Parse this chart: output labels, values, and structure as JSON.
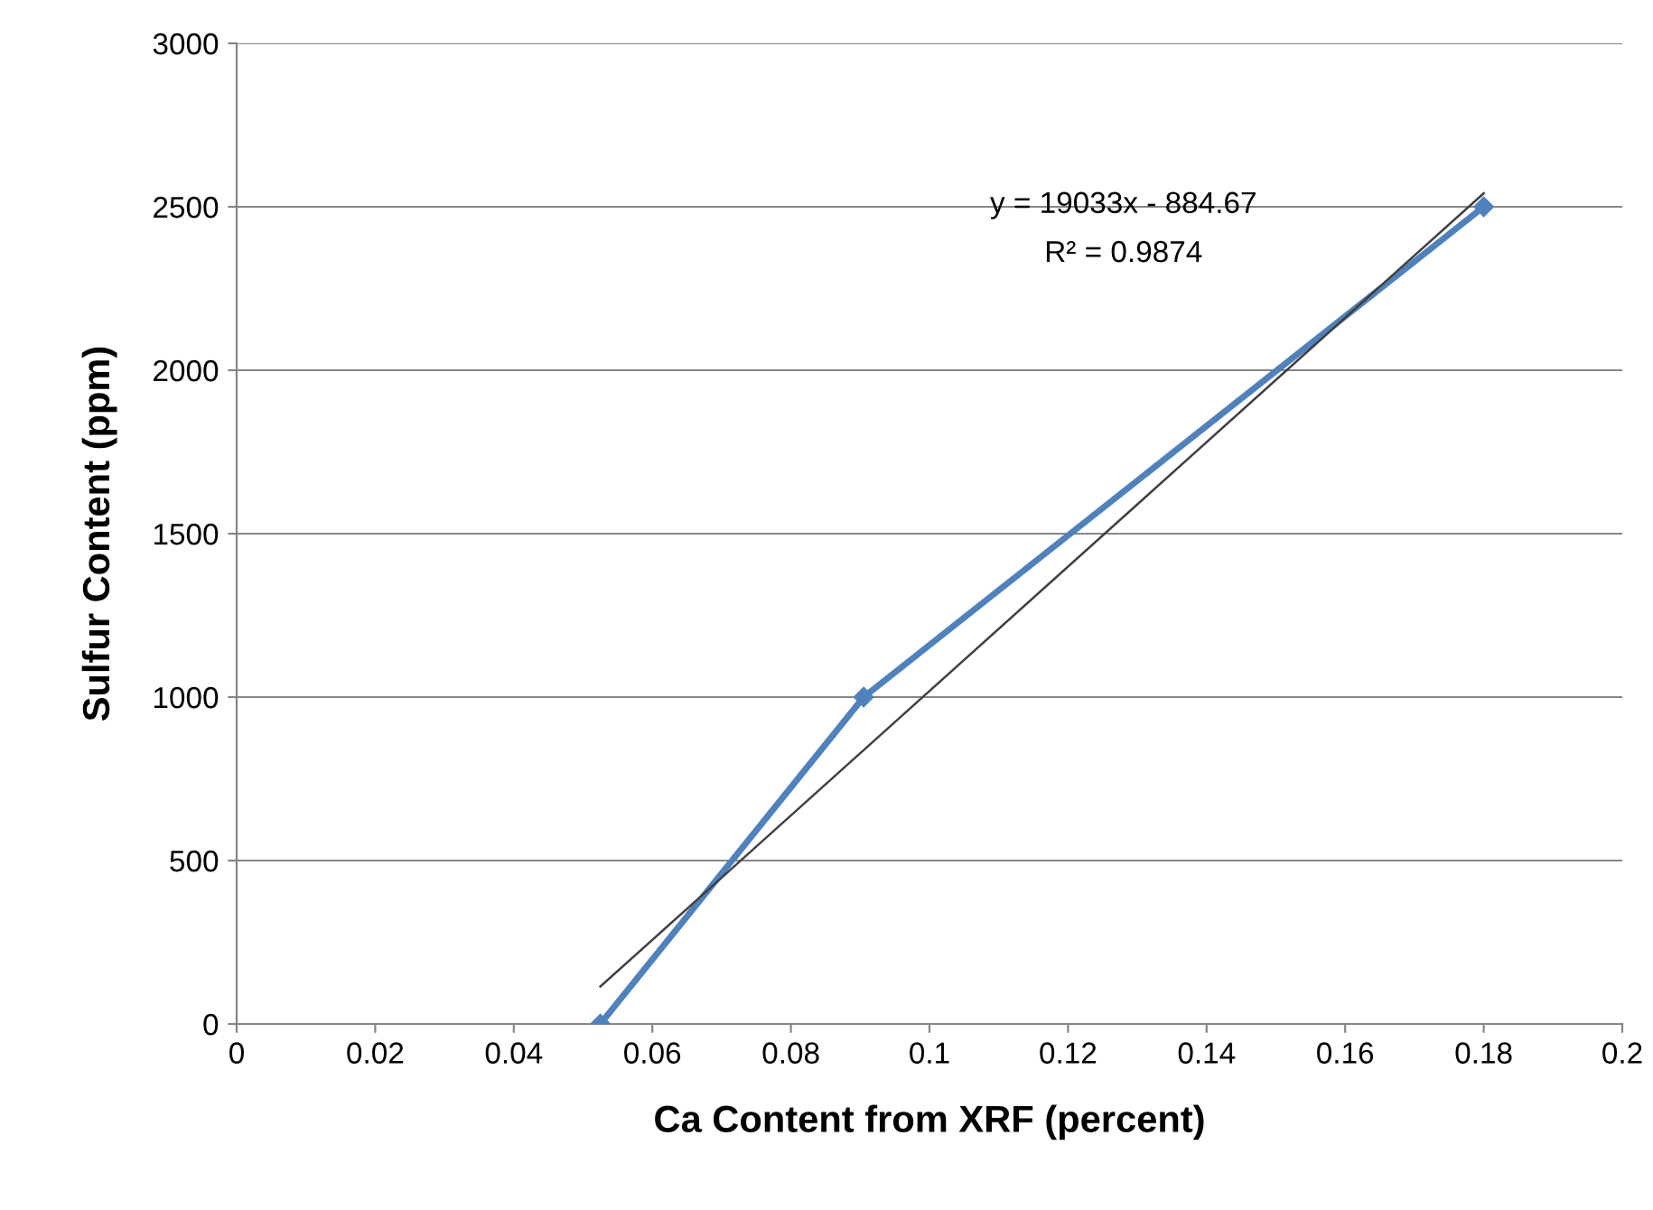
{
  "chart_data": {
    "type": "line",
    "xlabel": "Ca Content from XRF (percent)",
    "ylabel": "Sulfur Content (ppm)",
    "xlim": [
      0,
      0.2
    ],
    "xticks": [
      0,
      0.02,
      0.04,
      0.06,
      0.08,
      0.1,
      0.12,
      0.14,
      0.16,
      0.18,
      0.2
    ],
    "ylim": [
      0,
      3000
    ],
    "yticks": [
      0,
      500,
      1000,
      1500,
      2000,
      2500,
      3000
    ],
    "grid": "y",
    "series": [
      {
        "color": "#4f81bd",
        "x": [
          0.0525,
          0.0905,
          0.18
        ],
        "values": [
          0,
          1000,
          2500
        ],
        "marker": "diamond",
        "line_style": "solid"
      },
      {
        "color": "#404040",
        "x": [
          0.0525,
          0.18
        ],
        "values": [
          114.5,
          2541.3
        ],
        "marker": "none",
        "line_style": "solid"
      }
    ],
    "annotations": [
      "y = 19033x - 884.67",
      "R² = 0.9874"
    ]
  }
}
